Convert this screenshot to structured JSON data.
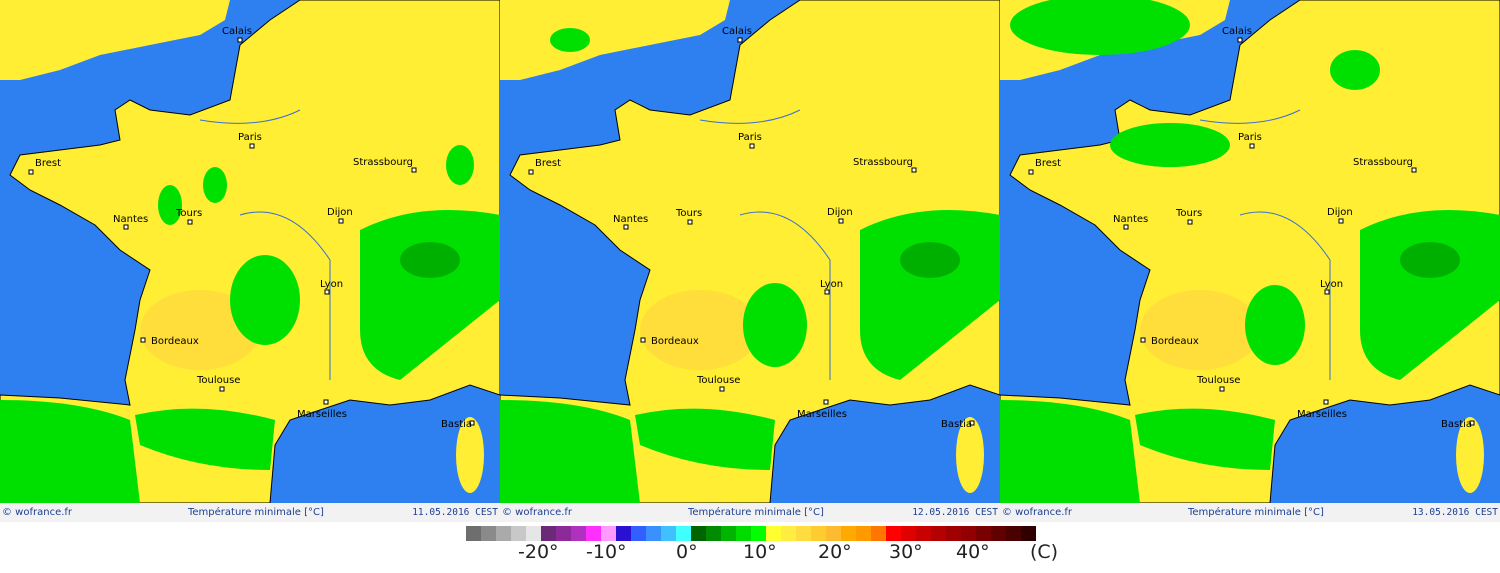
{
  "panels": [
    {
      "copyright": "© wofrance.fr",
      "title": "Température minimale [°C]",
      "date": "11.05.2016  CEST"
    },
    {
      "copyright": "© wofrance.fr",
      "title": "Température minimale [°C]",
      "date": "12.05.2016  CEST"
    },
    {
      "copyright": "© wofrance.fr",
      "title": "Température minimale [°C]",
      "date": "13.05.2016  CEST"
    }
  ],
  "cities": [
    "Calais",
    "Paris",
    "Brest",
    "Strassbourg",
    "Nantes",
    "Tours",
    "Dijon",
    "Lyon",
    "Bordeaux",
    "Toulouse",
    "Marseilles",
    "Bastia"
  ],
  "colors": {
    "sea": "#2e7ff0",
    "land_warm": "#ffee33",
    "land_hot": "#ffdd3a",
    "green": "#00e000",
    "dark_green": "#00b000",
    "footer_text": "#1c3f94"
  },
  "legend": {
    "swatches": [
      "#6e6e6e",
      "#8a8a8a",
      "#aaaaaa",
      "#c8c8c8",
      "#e6e6e6",
      "#6a2a78",
      "#8c2a9a",
      "#b030c0",
      "#ff30ff",
      "#ff9aff",
      "#2a10d0",
      "#3060ff",
      "#3a90ff",
      "#40c0ff",
      "#40ffff",
      "#006400",
      "#008c00",
      "#00b400",
      "#00dc00",
      "#00ff00",
      "#ffff30",
      "#ffee40",
      "#ffdd40",
      "#ffcc30",
      "#ffbb30",
      "#ffaa00",
      "#ff9900",
      "#ff7700",
      "#ff0000",
      "#e00000",
      "#c80000",
      "#b40000",
      "#a00000",
      "#900000",
      "#780000",
      "#600000",
      "#480000",
      "#300000"
    ],
    "labels": [
      "-20°",
      "-10°",
      "0°",
      "10°",
      "20°",
      "30°",
      "40°",
      "(C)"
    ]
  }
}
